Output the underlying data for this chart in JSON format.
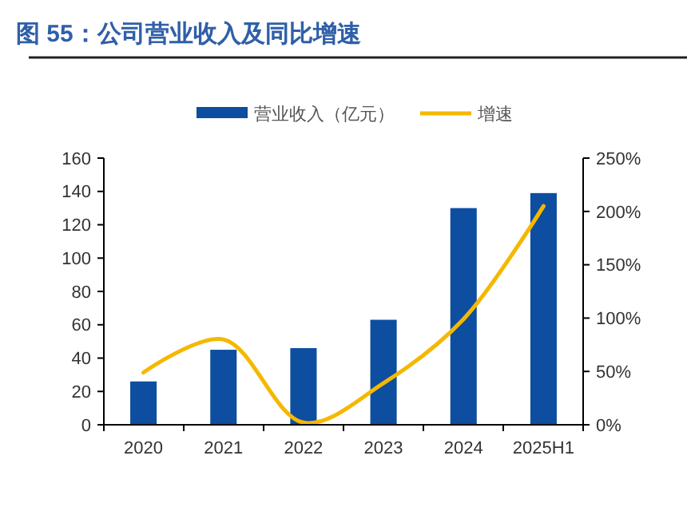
{
  "chart_data": {
    "type": "bar",
    "title": "图 55：公司营业收入及同比增速",
    "categories": [
      "2020",
      "2021",
      "2022",
      "2023",
      "2024",
      "2025H1"
    ],
    "series": [
      {
        "name": "营业收入（亿元）",
        "color": "#0d4ea0",
        "values": [
          26,
          45,
          46,
          63,
          130,
          139
        ]
      },
      {
        "name": "增速",
        "type": "line",
        "axis": "y2",
        "color": "#f5b800",
        "values": [
          49,
          80,
          2,
          39,
          99,
          205
        ]
      }
    ],
    "ylim": [
      0,
      160
    ],
    "yticks": [
      0,
      20,
      40,
      60,
      80,
      100,
      120,
      140,
      160
    ],
    "y2lim": [
      0,
      250
    ],
    "y2ticks": [
      {
        "value": 0,
        "label": "0%"
      },
      {
        "value": 50,
        "label": "50%"
      },
      {
        "value": 100,
        "label": "100%"
      },
      {
        "value": 150,
        "label": "150%"
      },
      {
        "value": 200,
        "label": "200%"
      },
      {
        "value": 250,
        "label": "250%"
      }
    ],
    "legend": "top",
    "grid": false,
    "marker": "none",
    "line_style": "solid"
  }
}
